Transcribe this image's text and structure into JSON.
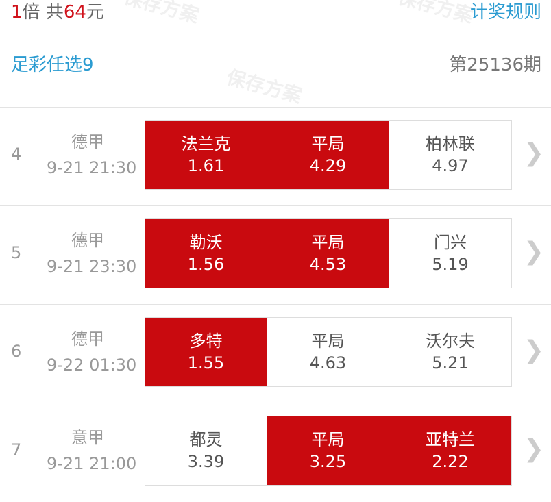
{
  "header": {
    "multiplier": "1",
    "multiplier_unit": "倍 共",
    "amount": "64",
    "amount_unit": "元",
    "rules_link": "计奖规则",
    "game": "足彩任选9",
    "issue": "第25136期"
  },
  "watermark": "保存方案",
  "colors": {
    "selected": "#c90a0f",
    "link": "#2a9bd1"
  },
  "matches": [
    {
      "no": "4",
      "league": "德甲",
      "time": "9-21 21:30",
      "options": [
        {
          "name": "法兰克",
          "odds": "1.61",
          "selected": true
        },
        {
          "name": "平局",
          "odds": "4.29",
          "selected": true
        },
        {
          "name": "柏林联",
          "odds": "4.97",
          "selected": false
        }
      ]
    },
    {
      "no": "5",
      "league": "德甲",
      "time": "9-21 23:30",
      "options": [
        {
          "name": "勒沃",
          "odds": "1.56",
          "selected": true
        },
        {
          "name": "平局",
          "odds": "4.53",
          "selected": true
        },
        {
          "name": "门兴",
          "odds": "5.19",
          "selected": false
        }
      ]
    },
    {
      "no": "6",
      "league": "德甲",
      "time": "9-22 01:30",
      "options": [
        {
          "name": "多特",
          "odds": "1.55",
          "selected": true
        },
        {
          "name": "平局",
          "odds": "4.63",
          "selected": false
        },
        {
          "name": "沃尔夫",
          "odds": "5.21",
          "selected": false
        }
      ]
    },
    {
      "no": "7",
      "league": "意甲",
      "time": "9-21 21:00",
      "options": [
        {
          "name": "都灵",
          "odds": "3.39",
          "selected": false
        },
        {
          "name": "平局",
          "odds": "3.25",
          "selected": true
        },
        {
          "name": "亚特兰",
          "odds": "2.22",
          "selected": true
        }
      ]
    }
  ]
}
